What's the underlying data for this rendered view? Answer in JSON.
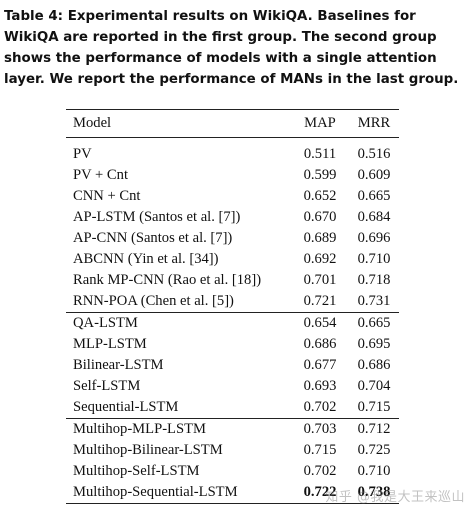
{
  "caption": "Table 4: Experimental results on WikiQA. Baselines for WikiQA are reported in the first group. The second group shows the performance of models with a single attention layer. We report the performance of MANs in the last group.",
  "header": {
    "model": "Model",
    "map": "MAP",
    "mrr": "MRR"
  },
  "groups": [
    {
      "rows": [
        {
          "model": "PV",
          "map": "0.511",
          "mrr": "0.516"
        },
        {
          "model": "PV + Cnt",
          "map": "0.599",
          "mrr": "0.609"
        },
        {
          "model": "CNN + Cnt",
          "map": "0.652",
          "mrr": "0.665"
        },
        {
          "model": "AP-LSTM (Santos et al. [7])",
          "map": "0.670",
          "mrr": "0.684"
        },
        {
          "model": "AP-CNN (Santos et al. [7])",
          "map": "0.689",
          "mrr": "0.696"
        },
        {
          "model": "ABCNN (Yin et al. [34])",
          "map": "0.692",
          "mrr": "0.710"
        },
        {
          "model": "Rank MP-CNN (Rao et al. [18])",
          "map": "0.701",
          "mrr": "0.718"
        },
        {
          "model": "RNN-POA (Chen et al. [5])",
          "map": "0.721",
          "mrr": "0.731"
        }
      ]
    },
    {
      "rows": [
        {
          "model": "QA-LSTM",
          "map": "0.654",
          "mrr": "0.665"
        },
        {
          "model": "MLP-LSTM",
          "map": "0.686",
          "mrr": "0.695"
        },
        {
          "model": "Bilinear-LSTM",
          "map": "0.677",
          "mrr": "0.686"
        },
        {
          "model": "Self-LSTM",
          "map": "0.693",
          "mrr": "0.704"
        },
        {
          "model": "Sequential-LSTM",
          "map": "0.702",
          "mrr": "0.715"
        }
      ]
    },
    {
      "rows": [
        {
          "model": "Multihop-MLP-LSTM",
          "map": "0.703",
          "mrr": "0.712"
        },
        {
          "model": "Multihop-Bilinear-LSTM",
          "map": "0.715",
          "mrr": "0.725"
        },
        {
          "model": "Multihop-Self-LSTM",
          "map": "0.702",
          "mrr": "0.710"
        },
        {
          "model": "Multihop-Sequential-LSTM",
          "map": "0.722",
          "mrr": "0.738"
        }
      ]
    }
  ],
  "watermark": "知乎 @我是大王来巡山"
}
